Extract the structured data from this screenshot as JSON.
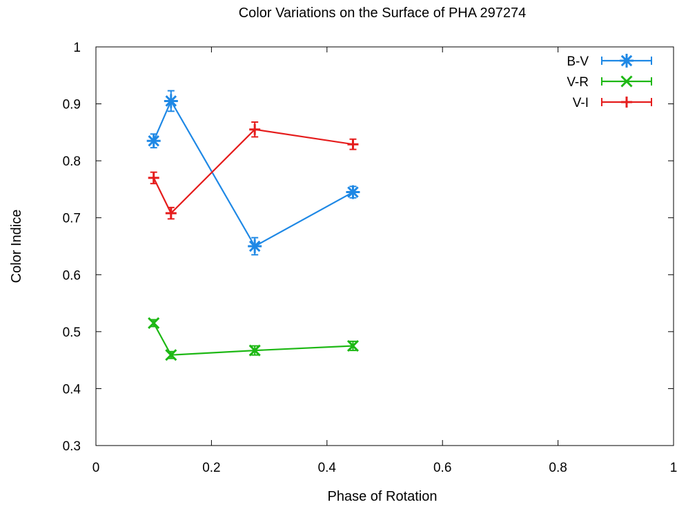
{
  "chart_data": {
    "type": "line",
    "title": "Color Variations on the Surface of PHA 297274",
    "xlabel": "Phase of Rotation",
    "ylabel": "Color Indice",
    "xlim": [
      0,
      1
    ],
    "ylim": [
      0.3,
      1
    ],
    "x_ticks": [
      "0",
      "0.2",
      "0.4",
      "0.6",
      "0.8",
      "1"
    ],
    "y_ticks": [
      "0.3",
      "0.4",
      "0.5",
      "0.6",
      "0.7",
      "0.8",
      "0.9",
      "1"
    ],
    "grid": false,
    "legend_position": "top-right",
    "series": [
      {
        "name": "B-V",
        "color": "#1e88e5",
        "marker": "asterisk",
        "x": [
          0.1,
          0.13,
          0.275,
          0.445
        ],
        "y": [
          0.835,
          0.905,
          0.65,
          0.745
        ],
        "yerr": [
          0.012,
          0.018,
          0.015,
          0.01
        ]
      },
      {
        "name": "V-R",
        "color": "#1db814",
        "marker": "x",
        "x": [
          0.1,
          0.13,
          0.275,
          0.445
        ],
        "y": [
          0.515,
          0.459,
          0.467,
          0.475
        ],
        "yerr": [
          0.006,
          0.006,
          0.008,
          0.008
        ]
      },
      {
        "name": "V-I",
        "color": "#e51c1c",
        "marker": "plus",
        "x": [
          0.1,
          0.13,
          0.275,
          0.445
        ],
        "y": [
          0.77,
          0.708,
          0.855,
          0.829
        ],
        "yerr": [
          0.01,
          0.01,
          0.013,
          0.009
        ]
      }
    ]
  }
}
